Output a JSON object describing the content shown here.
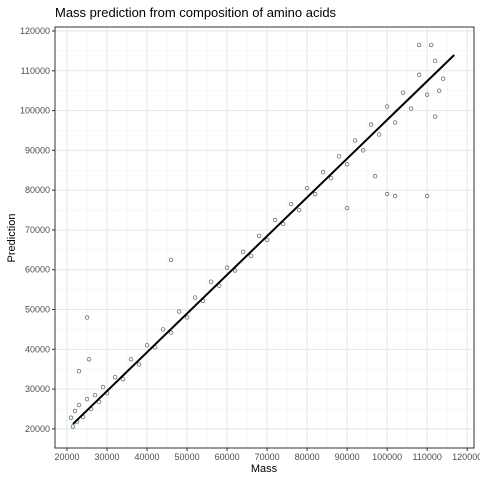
{
  "chart_data": {
    "type": "scatter",
    "title": "Mass prediction from composition of amino acids",
    "x_label": "Mass",
    "y_label": "Prediction",
    "xlim": [
      17000,
      121700
    ],
    "ylim": [
      15200,
      121000
    ],
    "xticks": [
      20000,
      30000,
      40000,
      50000,
      60000,
      70000,
      80000,
      90000,
      100000,
      110000,
      120000
    ],
    "yticks": [
      20000,
      30000,
      40000,
      50000,
      60000,
      70000,
      80000,
      90000,
      100000,
      110000,
      120000
    ],
    "xminorticks": [
      25000,
      35000,
      45000,
      55000,
      65000,
      75000,
      85000,
      95000,
      105000,
      115000
    ],
    "yminorticks": [
      15000,
      25000,
      35000,
      45000,
      55000,
      65000,
      75000,
      85000,
      95000,
      105000,
      115000
    ],
    "grid": true,
    "series": [
      {
        "color": "#5b7381",
        "x": [
          21000,
          21500,
          22000,
          22500,
          23000,
          24000,
          25000,
          26000,
          27000,
          28000,
          29000,
          30000,
          32000,
          34000,
          36000,
          38000,
          40000,
          42000,
          44000,
          46000,
          48000,
          50000,
          52000,
          54000,
          56000,
          58000,
          60000,
          62000,
          64000,
          66000,
          68000,
          70000,
          72000,
          74000,
          76000,
          78000,
          80000,
          82000,
          84000,
          86000,
          88000,
          90000,
          92000,
          94000,
          96000,
          98000,
          100000,
          102000,
          104000,
          106000,
          108000,
          110000,
          112000,
          114000,
          25000,
          46000,
          25500,
          23000,
          90000,
          102000,
          110000,
          108000,
          111000,
          97000,
          100000,
          112000,
          113000
        ],
        "y": [
          22800,
          20600,
          24500,
          21800,
          26000,
          23000,
          27500,
          25000,
          28500,
          26800,
          30500,
          29000,
          33000,
          32500,
          37500,
          36200,
          41000,
          40500,
          45000,
          44200,
          49500,
          48000,
          53000,
          52200,
          57000,
          56000,
          60500,
          59800,
          64500,
          63500,
          68500,
          67500,
          72500,
          71500,
          76500,
          75000,
          80500,
          79000,
          84500,
          83000,
          88500,
          86500,
          92500,
          90000,
          96500,
          94000,
          101000,
          97000,
          104500,
          100500,
          109000,
          104000,
          112500,
          108000,
          48000,
          62500,
          37500,
          34500,
          75500,
          78500,
          78500,
          116500,
          116500,
          83500,
          79000,
          98500,
          105000
        ]
      },
      {
        "type": "line",
        "color": "#000000",
        "x": [
          21500,
          116750
        ],
        "y": [
          21250,
          113970
        ]
      }
    ]
  }
}
